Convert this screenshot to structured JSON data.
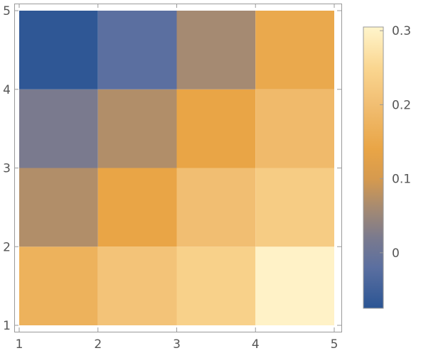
{
  "chart_data": {
    "type": "heatmap",
    "title": "",
    "xlabel": "",
    "ylabel": "",
    "x_edges": [
      1,
      2,
      3,
      4,
      5
    ],
    "y_edges": [
      1,
      2,
      3,
      4,
      5
    ],
    "xlim": [
      1,
      5
    ],
    "ylim": [
      1,
      5
    ],
    "x_ticks": [
      "1",
      "2",
      "3",
      "4",
      "5"
    ],
    "y_ticks": [
      "1",
      "2",
      "3",
      "4",
      "5"
    ],
    "values": [
      [
        0.17,
        0.21,
        0.24,
        0.3
      ],
      [
        0.07,
        0.14,
        0.2,
        0.23
      ],
      [
        0.02,
        0.07,
        0.14,
        0.19
      ],
      [
        -0.07,
        -0.02,
        0.06,
        0.15
      ]
    ],
    "grid": false,
    "colorbar": {
      "placement": "right",
      "range": [
        -0.075,
        0.305
      ],
      "ticks": [
        {
          "value": 0.3,
          "label": "0.3"
        },
        {
          "value": 0.2,
          "label": "0.2"
        },
        {
          "value": 0.1,
          "label": "0.1"
        },
        {
          "value": 0,
          "label": "0"
        }
      ],
      "colors": [
        {
          "value": -0.075,
          "color": "#2b5594"
        },
        {
          "value": -0.02,
          "color": "#5b6fa0"
        },
        {
          "value": 0.02,
          "color": "#7a7a8e"
        },
        {
          "value": 0.06,
          "color": "#a58a72"
        },
        {
          "value": 0.1,
          "color": "#d69a4e"
        },
        {
          "value": 0.14,
          "color": "#e9a546"
        },
        {
          "value": 0.2,
          "color": "#f1be72"
        },
        {
          "value": 0.25,
          "color": "#fad690"
        },
        {
          "value": 0.305,
          "color": "#fff5cc"
        }
      ]
    }
  }
}
